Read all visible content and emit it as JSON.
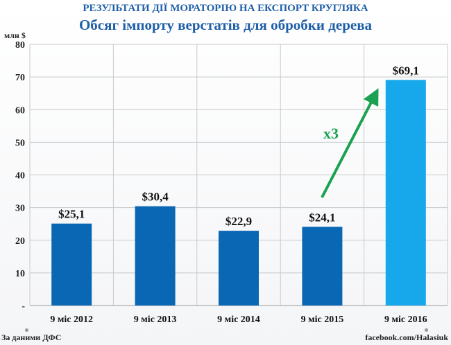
{
  "header": {
    "supertitle": "РЕЗУЛЬТАТИ ДІЇ МОРАТОРІЮ НА ЕКСПОРТ КРУГЛЯКА",
    "title": "Обсяг імпорту верстатів для обробки дерева"
  },
  "chart_data": {
    "type": "bar",
    "ylabel": "млн $",
    "ylim": [
      0,
      80
    ],
    "yticks": [
      "-",
      "10",
      "20",
      "30",
      "40",
      "50",
      "60",
      "70",
      "80"
    ],
    "categories": [
      "9 міс 2012",
      "9 міс 2013",
      "9 міс 2014",
      "9 міс 2015",
      "9 міс 2016"
    ],
    "values": [
      25.1,
      30.4,
      22.9,
      24.1,
      69.1
    ],
    "data_labels": [
      "$25,1",
      "$30,4",
      "$22,9",
      "$24,1",
      "$69,1"
    ],
    "grid": true,
    "annotation": "x3",
    "colors": {
      "bar": "#0a67b4",
      "bar_highlight": "#16a8ea",
      "arrow": "#1aa152",
      "grid": "#c9c9c9"
    }
  },
  "footer": {
    "source": "За даними ДФС",
    "credit": "facebook.com/Halasiuk"
  }
}
